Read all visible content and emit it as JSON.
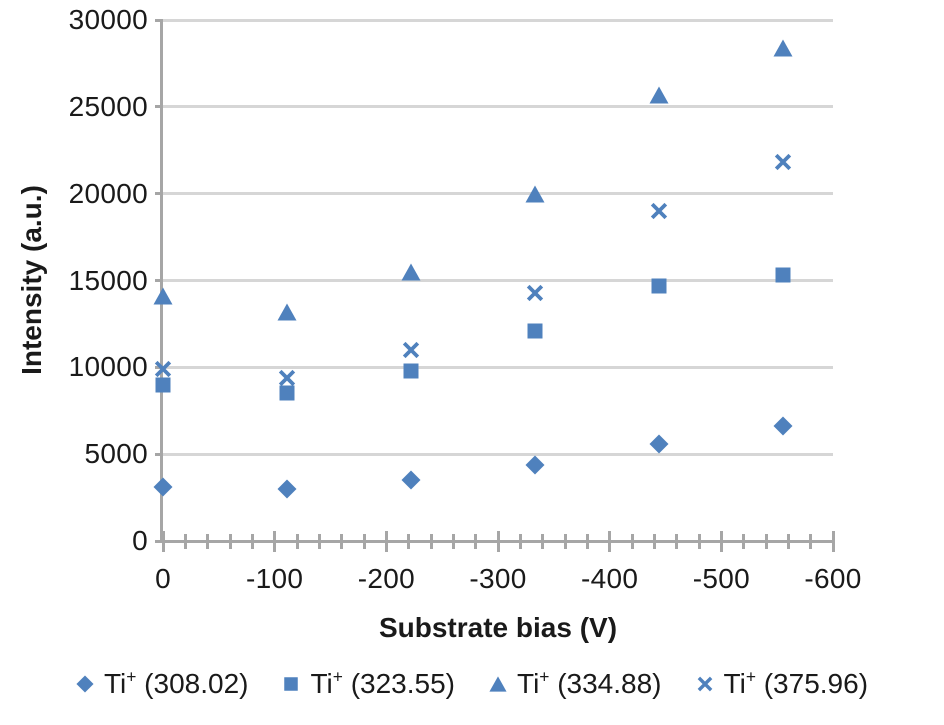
{
  "chart_data": {
    "type": "scatter",
    "title": "",
    "xlabel": "Substrate bias (V)",
    "ylabel": "Intensity (a.u.)",
    "xlim": [
      0,
      -600
    ],
    "ylim": [
      0,
      30000
    ],
    "grid": "horizontal-only",
    "legend_position": "bottom",
    "x": [
      0,
      -111,
      -222,
      -333,
      -444,
      -555
    ],
    "xaxis_ticks": {
      "values": [
        0,
        -100,
        -200,
        -300,
        -400,
        -500,
        -600
      ],
      "labels": [
        "0",
        "-100",
        "-200",
        "-300",
        "-400",
        "-500",
        "-600"
      ],
      "minor_step": 20
    },
    "yaxis_ticks": {
      "values": [
        0,
        5000,
        10000,
        15000,
        20000,
        25000,
        30000
      ],
      "labels": [
        "0",
        "5000",
        "10000",
        "15000",
        "20000",
        "25000",
        "30000"
      ]
    },
    "series": [
      {
        "name": "Ti+ (308.02)",
        "label_parts": {
          "element": "Ti",
          "charge": "+",
          "detail": " (308.02)"
        },
        "marker": "diamond",
        "color": "#4F81BD",
        "values": [
          3100,
          3000,
          3500,
          4400,
          5600,
          6600
        ]
      },
      {
        "name": "Ti+ (323.55)",
        "label_parts": {
          "element": "Ti",
          "charge": "+",
          "detail": " (323.55)"
        },
        "marker": "square",
        "color": "#4F81BD",
        "values": [
          9000,
          8500,
          9800,
          12100,
          14700,
          15300
        ]
      },
      {
        "name": "Ti+ (334.88)",
        "label_parts": {
          "element": "Ti",
          "charge": "+",
          "detail": " (334.88)"
        },
        "marker": "triangle",
        "color": "#4F81BD",
        "values": [
          14100,
          13200,
          15500,
          20000,
          25700,
          28400
        ]
      },
      {
        "name": "Ti+ (375.96)",
        "label_parts": {
          "element": "Ti",
          "charge": "+",
          "detail": " (375.96)"
        },
        "marker": "x",
        "color": "#4F81BD",
        "values": [
          9900,
          9400,
          11000,
          14300,
          19000,
          21800
        ]
      }
    ],
    "colors": {
      "marker_blue": "#4F81BD",
      "gridline": "#D6D6D6",
      "axis": "#A6A6A6",
      "text": "#1A1A1A"
    }
  }
}
